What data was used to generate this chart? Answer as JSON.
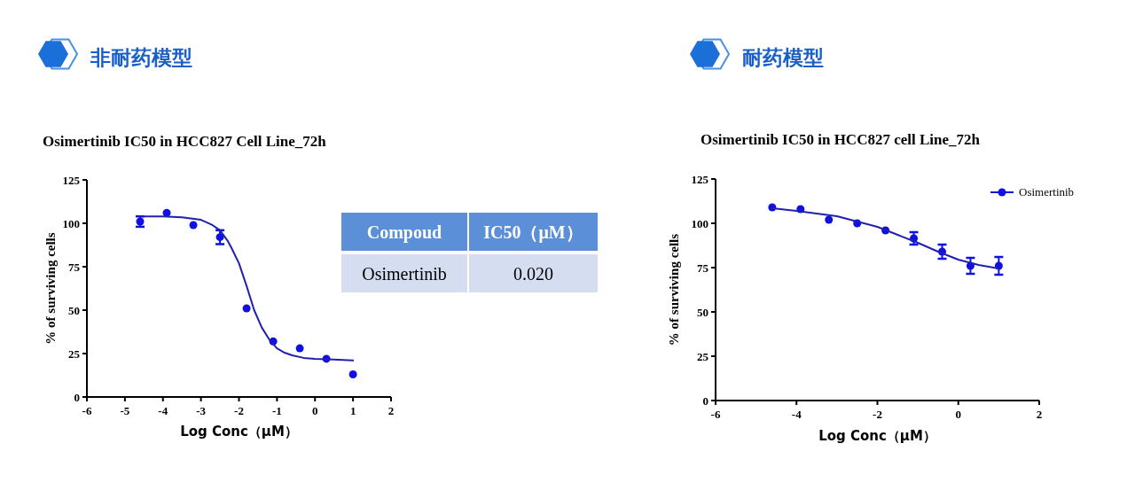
{
  "chart_data": [
    {
      "type": "scatter",
      "title": "非耐药模型",
      "subtitle": "Osimertinib IC50 in HCC827 Cell Line_72h",
      "xlabel": "Log Conc（μM）",
      "ylabel": "% of surviving cells",
      "xlim": [
        -6,
        2
      ],
      "ylim": [
        0,
        125
      ],
      "xticks": [
        -6,
        -5,
        -4,
        -3,
        -2,
        -1,
        0,
        1,
        2
      ],
      "yticks": [
        0,
        25,
        50,
        75,
        100,
        125
      ],
      "grid": false,
      "legend": false,
      "series": [
        {
          "type": "scatter",
          "marker": "circle",
          "color": "#1010e0",
          "x": [
            -4.6,
            -3.9,
            -3.2,
            -2.5,
            -1.8,
            -1.1,
            -0.4,
            0.3,
            1.0
          ],
          "values": [
            101,
            106,
            99,
            92,
            51,
            32,
            28,
            22,
            13
          ],
          "errors": [
            3,
            null,
            null,
            4,
            null,
            null,
            null,
            null,
            null
          ]
        },
        {
          "type": "line",
          "marker": "none",
          "color": "#2020b0",
          "x": [
            -4.6,
            -4,
            -3.5,
            -3,
            -2.7,
            -2.5,
            -2.3,
            -2.2,
            -2,
            -1.8,
            -1.6,
            -1.4,
            -1.2,
            -1,
            -0.8,
            -0.6,
            -0.3,
            0,
            0.5,
            1
          ],
          "values": [
            104,
            104,
            103.5,
            102,
            99,
            96,
            90,
            86,
            77,
            64,
            50,
            40,
            33,
            28,
            25.5,
            24,
            22.5,
            22,
            21.5,
            21
          ]
        }
      ]
    },
    {
      "type": "other",
      "annotations": [
        "Compoud",
        "IC50（μM）",
        "Osimertinib",
        "0.020"
      ]
    },
    {
      "type": "scatter",
      "title": "耐药模型",
      "subtitle": "Osimertinib  IC50 in HCC827 cell Line_72h",
      "xlabel": "Log Conc（μM）",
      "ylabel": "% of surviving cells",
      "xlim": [
        -6,
        2
      ],
      "ylim": [
        0,
        125
      ],
      "xticks": [
        -6,
        -4,
        -2,
        0,
        2
      ],
      "yticks": [
        0,
        25,
        50,
        75,
        100,
        125
      ],
      "grid": false,
      "legend": "top right",
      "series": [
        {
          "type": "scatter",
          "name": "Osimertinib",
          "marker": "circle",
          "color": "#1010e0",
          "x": [
            -4.6,
            -3.9,
            -3.2,
            -2.5,
            -1.8,
            -1.1,
            -0.4,
            0.3,
            1.0
          ],
          "values": [
            109,
            108,
            102,
            100,
            96,
            91.5,
            84,
            76,
            76
          ],
          "errors": [
            null,
            null,
            null,
            null,
            null,
            3.5,
            4,
            4.5,
            5
          ]
        },
        {
          "type": "line",
          "marker": "none",
          "color": "#2020b0",
          "x": [
            -4.6,
            -4,
            -3.5,
            -3,
            -2.5,
            -2,
            -1.5,
            -1,
            -0.5,
            0,
            0.5,
            1
          ],
          "values": [
            108.5,
            107,
            105.5,
            104,
            101,
            98,
            93.5,
            89,
            84,
            79.5,
            76.5,
            74.5
          ]
        }
      ]
    }
  ]
}
